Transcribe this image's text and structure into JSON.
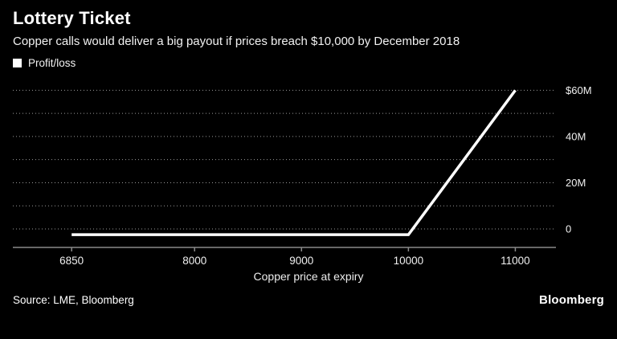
{
  "header": {
    "title": "Lottery Ticket",
    "subtitle": "Copper calls would deliver a big payout if prices breach $10,000 by December 2018"
  },
  "legend": {
    "label": "Profit/loss",
    "marker_color": "#ffffff"
  },
  "chart_data": {
    "type": "line",
    "title": "Lottery Ticket",
    "subtitle": "Copper calls would deliver a big payout if prices breach $10,000 by December 2018",
    "series": [
      {
        "name": "Profit/loss",
        "x": [
          6850,
          10000,
          11000
        ],
        "y": [
          -2.5,
          -2.5,
          60
        ]
      }
    ],
    "xlabel": "Copper price at expiry",
    "ylabel": "",
    "x_ticks": [
      6850,
      8000,
      9000,
      10000,
      11000
    ],
    "x_tick_labels": [
      "6850",
      "8000",
      "9000",
      "10000",
      "11000"
    ],
    "y_ticks": [
      0,
      10,
      20,
      30,
      40,
      50,
      60
    ],
    "y_tick_labels": {
      "0": "0",
      "20": "20M",
      "40": "40M",
      "60": "$60M"
    },
    "xlim": [
      6300,
      11380
    ],
    "ylim": [
      -8,
      65
    ],
    "grid": "horizontal-dotted",
    "legend_position": "top-left",
    "line_color": "#ffffff",
    "background_color": "#000000"
  },
  "footer": {
    "source": "Source: LME, Bloomberg",
    "brand": "Bloomberg"
  }
}
